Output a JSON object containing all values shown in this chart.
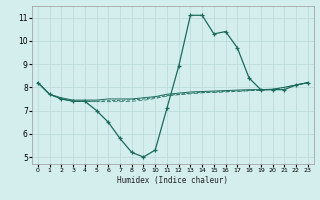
{
  "xlabel": "Humidex (Indice chaleur)",
  "bg_color": "#d4eeee",
  "line_color": "#1a6b5a",
  "grid_color": "#b8d8d8",
  "xlim": [
    -0.5,
    23.5
  ],
  "ylim": [
    4.7,
    11.5
  ],
  "yticks": [
    5,
    6,
    7,
    8,
    9,
    10,
    11
  ],
  "xticks": [
    0,
    1,
    2,
    3,
    4,
    5,
    6,
    7,
    8,
    9,
    10,
    11,
    12,
    13,
    14,
    15,
    16,
    17,
    18,
    19,
    20,
    21,
    22,
    23
  ],
  "curve1_x": [
    0,
    1,
    2,
    3,
    4,
    5,
    6,
    7,
    8,
    9,
    10,
    11,
    12,
    13,
    14,
    15,
    16,
    17,
    18,
    19,
    20,
    21,
    22,
    23
  ],
  "curve1_y": [
    8.2,
    7.7,
    7.5,
    7.4,
    7.4,
    7.0,
    6.5,
    5.8,
    5.2,
    5.0,
    5.3,
    7.1,
    8.9,
    11.1,
    11.1,
    10.3,
    10.4,
    9.7,
    8.4,
    7.9,
    7.9,
    7.9,
    8.1,
    8.2
  ],
  "curve2_x": [
    0,
    1,
    2,
    3,
    4,
    5,
    6,
    7,
    8,
    9,
    10,
    11,
    12,
    13,
    14,
    15,
    16,
    17,
    18,
    19,
    20,
    21,
    22,
    23
  ],
  "curve2_y": [
    8.2,
    7.7,
    7.55,
    7.45,
    7.45,
    7.45,
    7.5,
    7.5,
    7.5,
    7.55,
    7.6,
    7.7,
    7.75,
    7.8,
    7.82,
    7.84,
    7.86,
    7.88,
    7.9,
    7.9,
    7.92,
    8.0,
    8.1,
    8.2
  ],
  "curve3_x": [
    0,
    1,
    2,
    3,
    4,
    5,
    6,
    7,
    8,
    9,
    10,
    11,
    12,
    13,
    14,
    15,
    16,
    17,
    18,
    19,
    20,
    21,
    22,
    23
  ],
  "curve3_y": [
    8.2,
    7.7,
    7.5,
    7.4,
    7.4,
    7.4,
    7.42,
    7.44,
    7.46,
    7.5,
    7.56,
    7.65,
    7.7,
    7.75,
    7.78,
    7.8,
    7.82,
    7.84,
    7.86,
    7.88,
    7.9,
    8.0,
    8.1,
    8.2
  ],
  "curve4_x": [
    0,
    1,
    2,
    3,
    4,
    5,
    6,
    7,
    8,
    9,
    10,
    11,
    12,
    13,
    14,
    15,
    16,
    17,
    18,
    19,
    20,
    21,
    22,
    23
  ],
  "curve4_y": [
    8.2,
    7.7,
    7.5,
    7.4,
    7.4,
    7.38,
    7.38,
    7.38,
    7.4,
    7.44,
    7.52,
    7.62,
    7.68,
    7.72,
    7.76,
    7.78,
    7.8,
    7.82,
    7.85,
    7.88,
    7.9,
    8.0,
    8.1,
    8.2
  ]
}
